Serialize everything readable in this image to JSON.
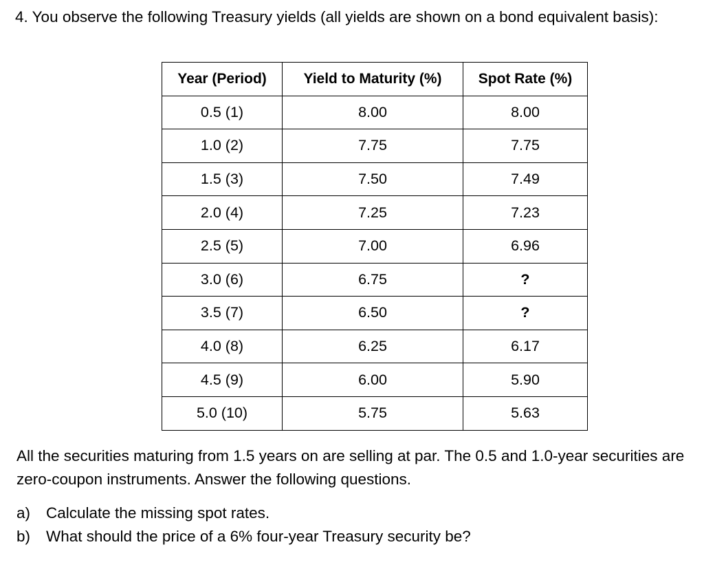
{
  "intro": "4. You observe the following Treasury yields (all yields are shown on a bond equivalent basis):",
  "table": {
    "headers": [
      "Year (Period)",
      "Yield to Maturity (%)",
      "Spot Rate (%)"
    ],
    "rows": [
      [
        "0.5 (1)",
        "8.00",
        "8.00"
      ],
      [
        "1.0 (2)",
        "7.75",
        "7.75"
      ],
      [
        "1.5 (3)",
        "7.50",
        "7.49"
      ],
      [
        "2.0 (4)",
        "7.25",
        "7.23"
      ],
      [
        "2.5 (5)",
        "7.00",
        "6.96"
      ],
      [
        "3.0 (6)",
        "6.75",
        "?"
      ],
      [
        "3.5 (7)",
        "6.50",
        "?"
      ],
      [
        "4.0 (8)",
        "6.25",
        "6.17"
      ],
      [
        "4.5 (9)",
        "6.00",
        "5.90"
      ],
      [
        "5.0 (10)",
        "5.75",
        "5.63"
      ]
    ]
  },
  "note": "All the securities maturing from 1.5 years on are selling at par. The 0.5 and 1.0-year securities are zero-coupon instruments. Answer the following questions.",
  "questions": [
    {
      "marker": "a)",
      "text": "Calculate the missing spot rates."
    },
    {
      "marker": "b)",
      "text": "What should the price of a 6% four-year Treasury security be?"
    }
  ]
}
